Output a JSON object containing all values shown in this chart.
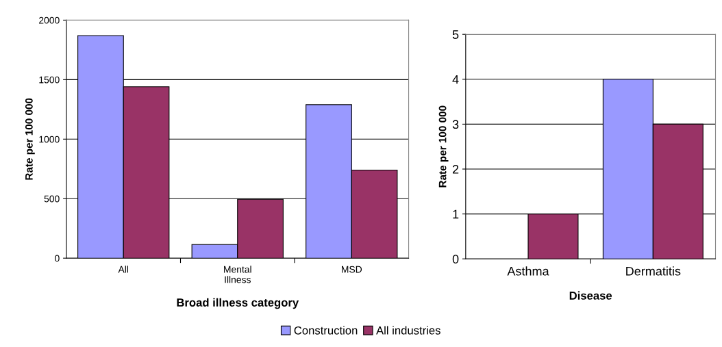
{
  "chart_data": [
    {
      "type": "bar",
      "xlabel": "Broad illness category",
      "ylabel": "Rate per 100 000",
      "categories": [
        "All",
        "Mental\nIllness",
        "MSD"
      ],
      "series": [
        {
          "name": "Construction",
          "color": "#9999ff",
          "values": [
            1870,
            115,
            1290
          ]
        },
        {
          "name": "All industries",
          "color": "#993366",
          "values": [
            1440,
            495,
            740
          ]
        }
      ],
      "ylim": [
        0,
        2000
      ],
      "yticks": [
        0,
        500,
        1000,
        1500,
        2000
      ],
      "grid": "y",
      "legend": "bottom"
    },
    {
      "type": "bar",
      "xlabel": "Disease",
      "ylabel": "Rate per 100 000",
      "categories": [
        "Asthma",
        "Dermatitis"
      ],
      "series": [
        {
          "name": "Construction",
          "color": "#9999ff",
          "values": [
            null,
            4
          ]
        },
        {
          "name": "All industries",
          "color": "#993366",
          "values": [
            1,
            3
          ]
        }
      ],
      "ylim": [
        0,
        5
      ],
      "yticks": [
        0,
        1,
        2,
        3,
        4,
        5
      ],
      "grid": "y"
    }
  ]
}
